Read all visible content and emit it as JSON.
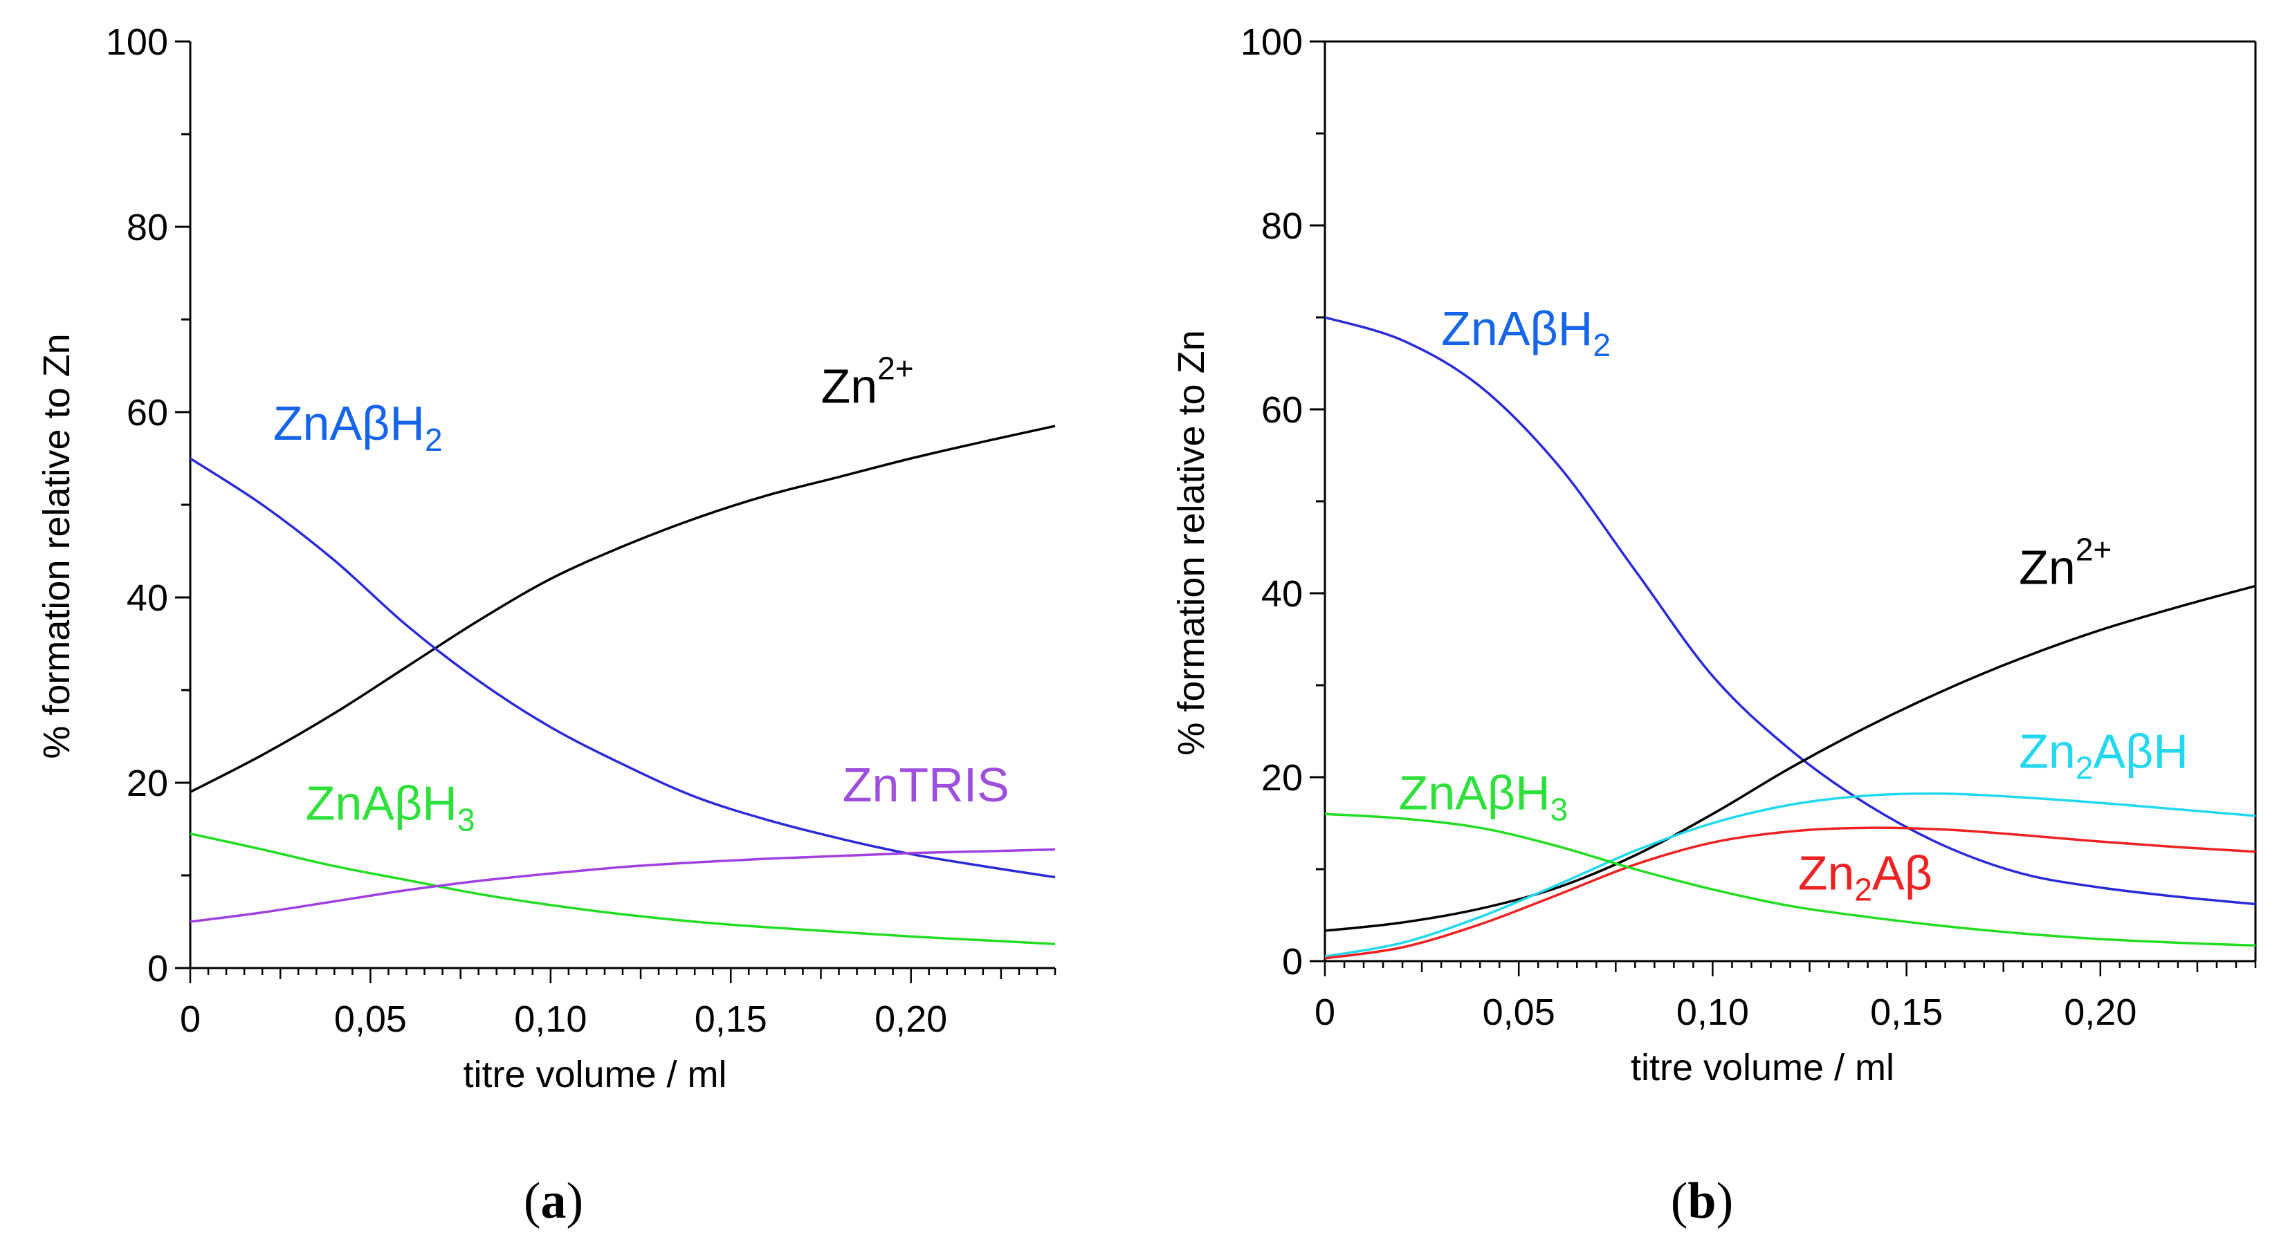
{
  "chart_data": [
    {
      "type": "line",
      "panel": "a",
      "caption_open": "(",
      "caption_letter": "a",
      "caption_close": ")",
      "xlabel": "titre volume / ml",
      "ylabel": "% formation relative to Zn",
      "xlim": [
        0,
        0.24
      ],
      "ylim": [
        0,
        100
      ],
      "xticks": [
        0,
        0.05,
        0.1,
        0.15,
        0.2
      ],
      "xtick_labels": [
        "0",
        "0,05",
        "0,10",
        "0,15",
        "0,20"
      ],
      "yticks": [
        0,
        20,
        40,
        60,
        80,
        100
      ],
      "ytick_labels": [
        "0",
        "20",
        "40",
        "60",
        "80",
        "100"
      ],
      "series": [
        {
          "name": "Zn2+",
          "color": "#000000",
          "x": [
            0,
            0.02,
            0.04,
            0.06,
            0.08,
            0.1,
            0.12,
            0.14,
            0.16,
            0.18,
            0.2,
            0.22,
            0.24
          ],
          "y": [
            19,
            23,
            27.5,
            32.5,
            37.5,
            42,
            45.5,
            48.5,
            51,
            53,
            55,
            56.8,
            58.5
          ]
        },
        {
          "name": "ZnAβH2",
          "color": "#2a2ad8",
          "x": [
            0,
            0.02,
            0.04,
            0.06,
            0.08,
            0.1,
            0.12,
            0.14,
            0.16,
            0.18,
            0.2,
            0.22,
            0.24
          ],
          "y": [
            55,
            50,
            44,
            37,
            31,
            26,
            22,
            18.5,
            16,
            14,
            12.3,
            11,
            9.8
          ]
        },
        {
          "name": "ZnAβH3",
          "color": "#22dd22",
          "x": [
            0,
            0.02,
            0.04,
            0.06,
            0.08,
            0.1,
            0.12,
            0.14,
            0.16,
            0.18,
            0.2,
            0.22,
            0.24
          ],
          "y": [
            14.5,
            12.8,
            11,
            9.5,
            8,
            6.8,
            5.8,
            5,
            4.4,
            3.9,
            3.4,
            3,
            2.6
          ]
        },
        {
          "name": "ZnTRIS",
          "color": "#a040e0",
          "x": [
            0,
            0.02,
            0.04,
            0.06,
            0.08,
            0.1,
            0.12,
            0.14,
            0.16,
            0.18,
            0.2,
            0.22,
            0.24
          ],
          "y": [
            5,
            6,
            7.2,
            8.4,
            9.4,
            10.2,
            10.9,
            11.4,
            11.8,
            12.1,
            12.4,
            12.6,
            12.8
          ]
        }
      ],
      "annotations": [
        {
          "series": "Zn2+",
          "color": "#000000",
          "base": "Zn",
          "sub": "",
          "sup": "2+",
          "tail": "",
          "at": [
            0.175,
            61
          ]
        },
        {
          "series": "ZnAβH2",
          "color": "#1565e8",
          "base": "ZnAβH",
          "sub": "2",
          "sup": "",
          "tail": "",
          "at": [
            0.023,
            57
          ]
        },
        {
          "series": "ZnAβH3",
          "color": "#2ee03a",
          "base": "ZnAβH",
          "sub": "3",
          "sup": "",
          "tail": "",
          "at": [
            0.032,
            16
          ]
        },
        {
          "series": "ZnTRIS",
          "color": "#9d4edd",
          "base": "ZnTRIS",
          "sub": "",
          "sup": "",
          "tail": "",
          "at": [
            0.181,
            18
          ]
        }
      ]
    },
    {
      "type": "line",
      "panel": "b",
      "caption_open": "(",
      "caption_letter": "b",
      "caption_close": ")",
      "xlabel": "titre volume / ml",
      "ylabel": "% formation relative to Zn",
      "xlim": [
        0,
        0.24
      ],
      "ylim": [
        0,
        100
      ],
      "xticks": [
        0,
        0.05,
        0.1,
        0.15,
        0.2
      ],
      "xtick_labels": [
        "0",
        "0,05",
        "0,10",
        "0,15",
        "0,20"
      ],
      "yticks": [
        0,
        20,
        40,
        60,
        80,
        100
      ],
      "ytick_labels": [
        "0",
        "20",
        "40",
        "60",
        "80",
        "100"
      ],
      "series": [
        {
          "name": "ZnAβH2",
          "color": "#2a2ad8",
          "x": [
            0,
            0.02,
            0.04,
            0.06,
            0.08,
            0.1,
            0.12,
            0.14,
            0.16,
            0.18,
            0.2,
            0.22,
            0.24
          ],
          "y": [
            70,
            67.5,
            62.5,
            54,
            42.5,
            31,
            23,
            17,
            12.5,
            9.5,
            8,
            7,
            6.2
          ]
        },
        {
          "name": "Zn2+",
          "color": "#000000",
          "x": [
            0,
            0.02,
            0.04,
            0.06,
            0.08,
            0.1,
            0.12,
            0.14,
            0.16,
            0.18,
            0.2,
            0.22,
            0.24
          ],
          "y": [
            3.3,
            4.2,
            5.7,
            8,
            11.5,
            16,
            21,
            25.5,
            29.5,
            33,
            36,
            38.5,
            40.8
          ]
        },
        {
          "name": "Zn2AβH",
          "color": "#22d8ee",
          "x": [
            0,
            0.02,
            0.04,
            0.06,
            0.08,
            0.1,
            0.12,
            0.14,
            0.16,
            0.18,
            0.2,
            0.22,
            0.24
          ],
          "y": [
            0.5,
            2,
            4.8,
            8.3,
            12,
            15,
            17,
            18,
            18.2,
            17.8,
            17.2,
            16.5,
            15.8
          ]
        },
        {
          "name": "Zn2Aβ",
          "color": "#ee2222",
          "x": [
            0,
            0.02,
            0.04,
            0.06,
            0.08,
            0.1,
            0.12,
            0.14,
            0.16,
            0.18,
            0.2,
            0.22,
            0.24
          ],
          "y": [
            0.3,
            1.5,
            4,
            7.2,
            10.5,
            12.9,
            14.1,
            14.5,
            14.3,
            13.7,
            13,
            12.4,
            11.9
          ]
        },
        {
          "name": "ZnAβH3",
          "color": "#22dd22",
          "x": [
            0,
            0.02,
            0.04,
            0.06,
            0.08,
            0.1,
            0.12,
            0.14,
            0.16,
            0.18,
            0.2,
            0.22,
            0.24
          ],
          "y": [
            16,
            15.5,
            14.5,
            12.5,
            10,
            7.8,
            6,
            4.8,
            3.8,
            3,
            2.4,
            2,
            1.7
          ]
        }
      ],
      "annotations": [
        {
          "series": "ZnAβH2",
          "color": "#1565e8",
          "base": "ZnAβH",
          "sub": "2",
          "sup": "",
          "tail": "",
          "at": [
            0.03,
            67
          ]
        },
        {
          "series": "Zn2+",
          "color": "#000000",
          "base": "Zn",
          "sub": "",
          "sup": "2+",
          "tail": "",
          "at": [
            0.179,
            41
          ]
        },
        {
          "series": "Zn2AβH",
          "color": "#22d8ee",
          "base": "Zn",
          "sub": "2",
          "sup": "",
          "tail": "AβH",
          "at": [
            0.179,
            21
          ]
        },
        {
          "series": "Zn2Aβ",
          "color": "#ee2222",
          "base": "Zn",
          "sub": "2",
          "sup": "",
          "tail": "Aβ",
          "at": [
            0.122,
            7.8
          ]
        },
        {
          "series": "ZnAβH3",
          "color": "#2ee03a",
          "base": "ZnAβH",
          "sub": "3",
          "sup": "",
          "tail": "",
          "at": [
            0.019,
            16.5
          ]
        }
      ]
    }
  ]
}
